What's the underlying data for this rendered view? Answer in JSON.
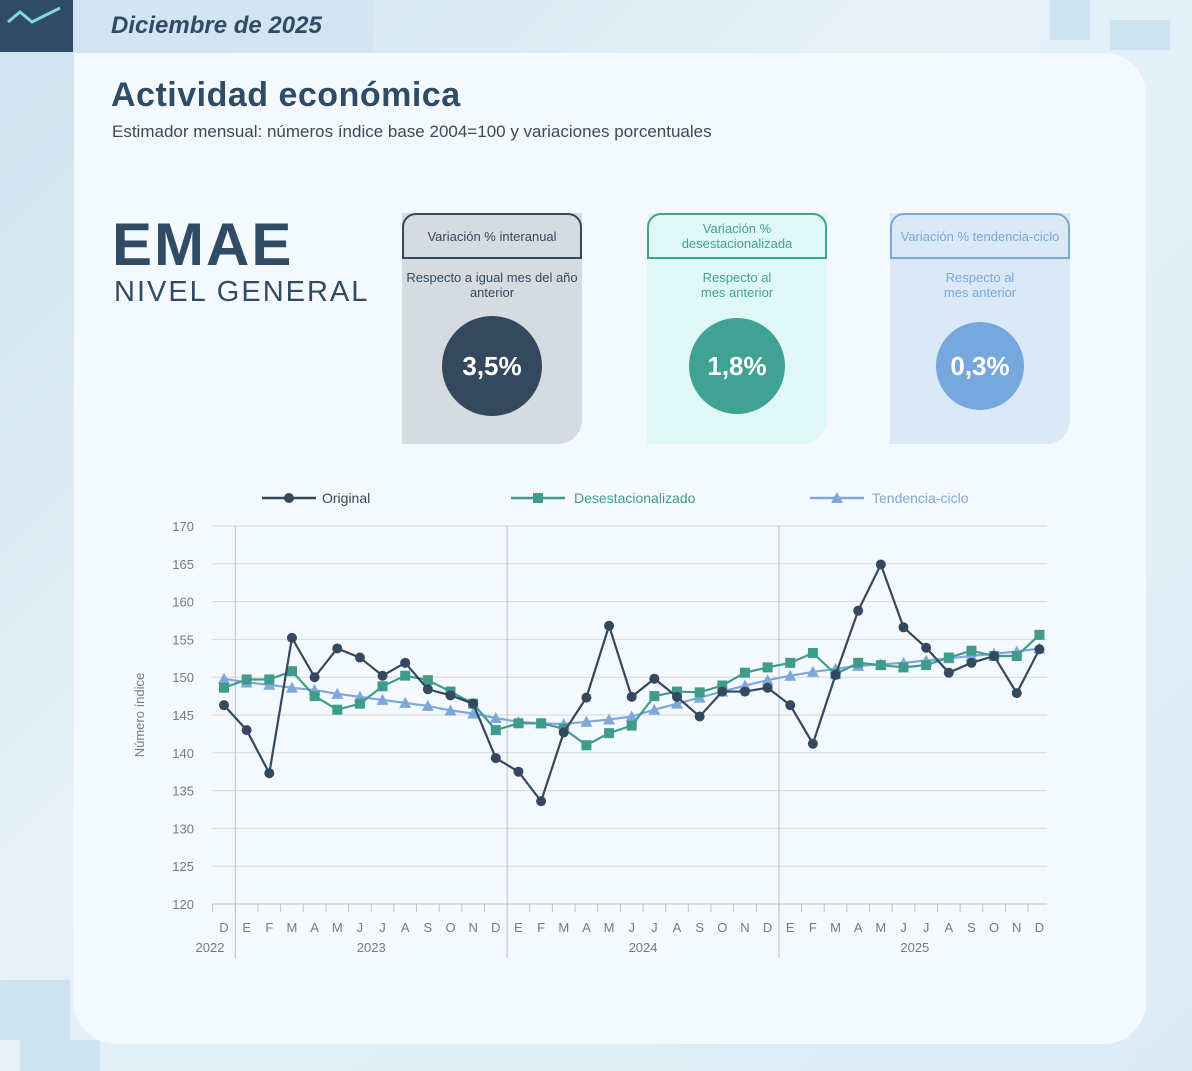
{
  "header": {
    "date_label": "Diciembre de 2025"
  },
  "title": "Actividad económica",
  "subtitle": "Estimador mensual: números índice base 2004=100 y variaciones porcentuales",
  "emae": {
    "name": "EMAE",
    "level": "NIVEL GENERAL"
  },
  "kpis": [
    {
      "title": "Variación % interanual",
      "desc": "Respecto a igual mes del año anterior",
      "value": "3,5%"
    },
    {
      "title": "Variación % desestacionalizada",
      "desc": "Respecto al mes anterior",
      "value": "1,8%"
    },
    {
      "title": "Variación % tendencia-ciclo",
      "desc": "Respecto al mes anterior",
      "value": "0,3%"
    }
  ],
  "colors": {
    "dark": "#2f4b66",
    "original": "#34495e",
    "seasonal": "#3f9c8c",
    "trend": "#7ea8d8",
    "kpi1_bg": "#d6dbe2",
    "kpi2_bg": "#e0f8f5",
    "kpi3_bg": "#dbe8f5",
    "kpi1_circle": "#34495e",
    "kpi2_circle": "#3fa292",
    "kpi3_circle": "#76a8de"
  },
  "chart_data": {
    "type": "line",
    "title": "",
    "ylabel": "Número índice",
    "xlabel": "",
    "ylim": [
      120,
      170
    ],
    "yticks": [
      120,
      125,
      130,
      135,
      140,
      145,
      150,
      155,
      160,
      165,
      170
    ],
    "categories": [
      "D",
      "E",
      "F",
      "M",
      "A",
      "M",
      "J",
      "J",
      "A",
      "S",
      "O",
      "N",
      "D",
      "E",
      "F",
      "M",
      "A",
      "M",
      "J",
      "J",
      "A",
      "S",
      "O",
      "N",
      "D",
      "E",
      "F",
      "M",
      "A",
      "M",
      "J",
      "J",
      "A",
      "S",
      "O",
      "N",
      "D"
    ],
    "year_labels": [
      {
        "label": "2022",
        "start": 0,
        "end": 0
      },
      {
        "label": "2023",
        "start": 1,
        "end": 12
      },
      {
        "label": "2024",
        "start": 13,
        "end": 24
      },
      {
        "label": "2025",
        "start": 25,
        "end": 36
      }
    ],
    "legend_position": "top",
    "series": [
      {
        "name": "Original",
        "marker": "circle",
        "values": [
          146.3,
          143.0,
          137.3,
          155.2,
          150.0,
          153.8,
          152.6,
          150.2,
          151.9,
          148.4,
          147.6,
          146.5,
          139.3,
          137.5,
          133.6,
          142.7,
          147.3,
          156.8,
          147.4,
          149.8,
          147.4,
          144.8,
          148.1,
          148.1,
          148.6,
          146.3,
          141.2,
          150.3,
          158.8,
          164.9,
          156.6,
          153.9,
          150.6,
          151.9,
          152.8,
          147.9,
          153.7
        ]
      },
      {
        "name": "Desestacionalizado",
        "marker": "square",
        "values": [
          148.6,
          149.7,
          149.7,
          150.8,
          147.5,
          145.7,
          146.5,
          148.8,
          150.2,
          149.6,
          148.1,
          146.5,
          143.0,
          143.9,
          143.9,
          143.2,
          141.0,
          142.6,
          143.6,
          147.5,
          148.1,
          148.0,
          148.9,
          150.6,
          151.3,
          151.9,
          153.2,
          150.4,
          151.9,
          151.6,
          151.3,
          151.6,
          152.6,
          153.5,
          152.8,
          152.8,
          155.6
        ]
      },
      {
        "name": "Tendencia-ciclo",
        "marker": "triangle",
        "values": [
          149.8,
          149.3,
          149.0,
          148.6,
          148.3,
          147.8,
          147.4,
          147.0,
          146.6,
          146.2,
          145.6,
          145.2,
          144.6,
          144.1,
          143.9,
          143.8,
          144.1,
          144.4,
          144.8,
          145.7,
          146.5,
          147.3,
          148.1,
          148.9,
          149.6,
          150.2,
          150.7,
          151.1,
          151.5,
          151.7,
          151.9,
          152.2,
          152.5,
          152.8,
          153.1,
          153.4,
          153.8
        ]
      }
    ]
  }
}
